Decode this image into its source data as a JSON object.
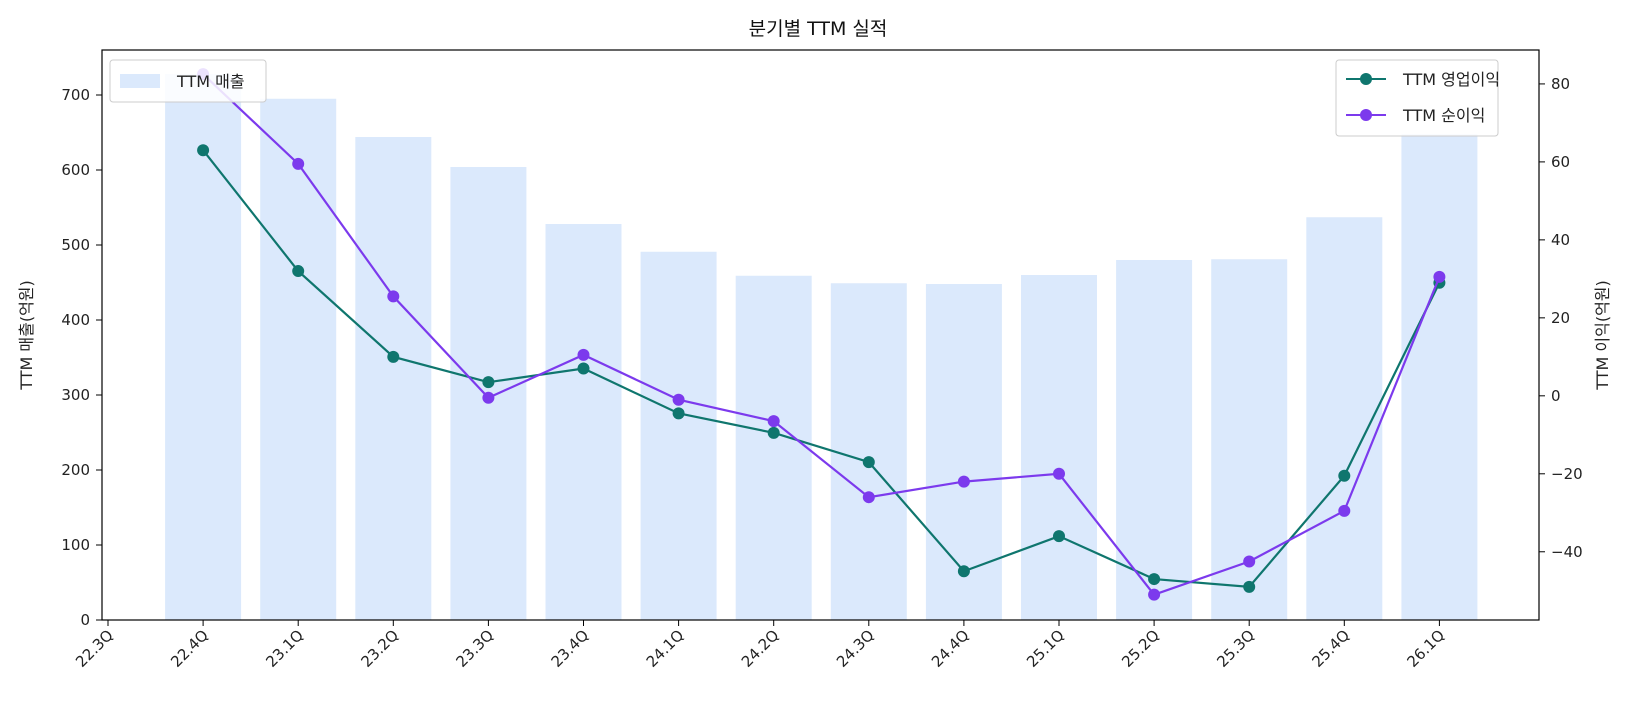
{
  "chart_data": {
    "type": "bar+line",
    "title": "분기별 TTM 실적",
    "categories": [
      "22.3Q",
      "22.4Q",
      "23.1Q",
      "23.2Q",
      "23.3Q",
      "23.4Q",
      "24.1Q",
      "24.2Q",
      "24.3Q",
      "24.4Q",
      "25.1Q",
      "25.2Q",
      "25.3Q",
      "25.4Q",
      "26.1Q"
    ],
    "bars": {
      "name": "TTM 매출",
      "color": "#dbe9fc",
      "axis": "left",
      "values": [
        null,
        728,
        695,
        644,
        604,
        528,
        491,
        459,
        449,
        448,
        460,
        480,
        481,
        537,
        648
      ]
    },
    "series": [
      {
        "name": "TTM 영업이익",
        "color": "#0f766e",
        "axis": "right",
        "values": [
          null,
          63,
          32,
          10,
          3.5,
          7,
          -4.5,
          -9.5,
          -17,
          -45,
          -36,
          -47,
          -49,
          -20.5,
          29
        ]
      },
      {
        "name": "TTM 순이익",
        "color": "#7c3aed",
        "axis": "right",
        "values": [
          null,
          82.5,
          59.5,
          25.5,
          -0.5,
          10.5,
          -1,
          -6.5,
          -26,
          -22,
          -20,
          -51,
          -42.5,
          -29.5,
          30.5
        ]
      }
    ],
    "ylabel_left": "TTM 매출(억원)",
    "ylabel_right": "TTM 이익(억원)",
    "ylim_left": [
      0,
      760
    ],
    "yticks_left": [
      0,
      100,
      200,
      300,
      400,
      500,
      600,
      700
    ],
    "ylim_right": [
      -57.5,
      88.7
    ],
    "yticks_right": [
      -40,
      -20,
      0,
      20,
      40,
      60,
      80
    ],
    "legend_left": "top-left",
    "legend_right": "top-right",
    "grid": false
  }
}
